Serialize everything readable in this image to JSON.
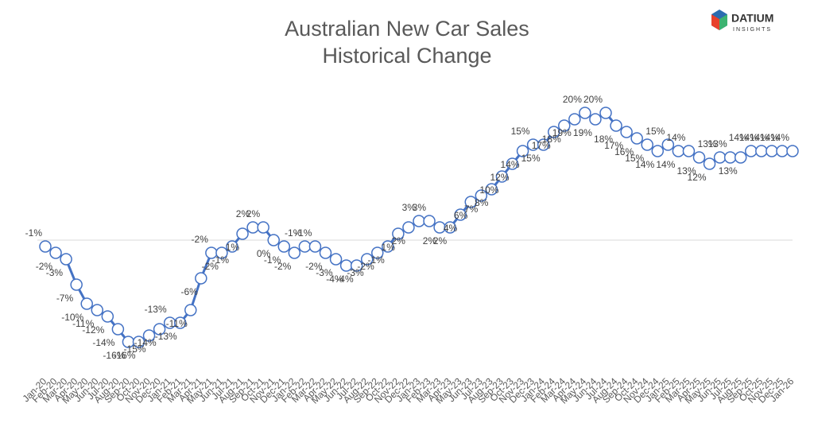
{
  "logo": {
    "name": "DATIUM",
    "tagline": "INSIGHTS"
  },
  "chart_data": {
    "type": "line",
    "title": [
      "Australian New Car Sales",
      "Historical Change"
    ],
    "categories": [
      "Jan-20",
      "Feb-20",
      "Mar-20",
      "Apr-20",
      "May-20",
      "Jun-20",
      "Jul-20",
      "Aug-20",
      "Sep-20",
      "Oct-20",
      "Nov-20",
      "Dec-20",
      "Jan-21",
      "Feb-21",
      "Mar-21",
      "Apr-21",
      "May-21",
      "Jun-21",
      "Jul-21",
      "Aug-21",
      "Sep-21",
      "Oct-21",
      "Nov-21",
      "Dec-21",
      "Jan-22",
      "Feb-22",
      "Mar-22",
      "Apr-22",
      "May-22",
      "Jun-22",
      "Jul-22",
      "Aug-22",
      "Sep-22",
      "Oct-22",
      "Nov-22",
      "Dec-22",
      "Jan-23",
      "Feb-23",
      "Mar-23",
      "Apr-23",
      "May-23",
      "Jun-23",
      "Jul-23",
      "Aug-23",
      "Sep-23",
      "Oct-23",
      "Nov-23",
      "Dec-23",
      "Jan-24",
      "Feb-24",
      "Mar-24",
      "Apr-24",
      "May-24",
      "Jun-24",
      "Jul-24",
      "Aug-24",
      "Sep-24",
      "Oct-24",
      "Nov-24",
      "Dec-24",
      "Jan-25",
      "Feb-25",
      "Mar-25",
      "Apr-25",
      "May-25",
      "Jun-25",
      "Jul-25",
      "Aug-25",
      "Sep-25",
      "Oct-25",
      "Nov-25",
      "Dec-25",
      "Jan-26"
    ],
    "series": [
      {
        "name": "Historical Change",
        "color": "#4472c4",
        "values": [
          -1,
          -2,
          -3,
          -7,
          -10,
          -11,
          -12,
          -14,
          -16,
          -16,
          -15,
          -14,
          -13,
          -13,
          -11,
          -6,
          -2,
          -2,
          -1,
          1,
          2,
          2,
          0,
          -1,
          -2,
          -1,
          -1,
          -2,
          -3,
          -4,
          -4,
          -3,
          -2,
          -1,
          1,
          2,
          3,
          3,
          2,
          2,
          4,
          6,
          7,
          8,
          10,
          12,
          14,
          15,
          15,
          17,
          18,
          19,
          20,
          19,
          20,
          18,
          17,
          16,
          15,
          14,
          15,
          14,
          14,
          13,
          12,
          13,
          13,
          13,
          14,
          14,
          14,
          14,
          14
        ],
        "value_labels": [
          "-1%",
          "-2%",
          "-3%",
          "-7%",
          "-10%",
          "-11%",
          "-12%",
          "-14%",
          "-16%",
          "-16%",
          "-15%",
          "-14%",
          "-13%",
          "-13%",
          "-11%",
          "-6%",
          "-2%",
          "-2%",
          "-1%",
          "1%",
          "2%",
          "2%",
          "0%",
          "-1%",
          "-2%",
          "-1%",
          "-1%",
          "-2%",
          "-3%",
          "-4%",
          "-4%",
          "-3%",
          "-2%",
          "-1%",
          "1%",
          "2%",
          "3%",
          "3%",
          "2%",
          "2%",
          "4%",
          "6%",
          "7%",
          "8%",
          "10%",
          "12%",
          "14%",
          "15%",
          "15%",
          "17%",
          "18%",
          "19%",
          "20%",
          "19%",
          "20%",
          "18%",
          "17%",
          "16%",
          "15%",
          "14%",
          "15%",
          "14%",
          "14%",
          "13%",
          "12%",
          "13%",
          "13%",
          "13%",
          "14%",
          "14%",
          "14%",
          "14%",
          "14%"
        ]
      }
    ],
    "ylim": [
      -20,
      25
    ]
  }
}
